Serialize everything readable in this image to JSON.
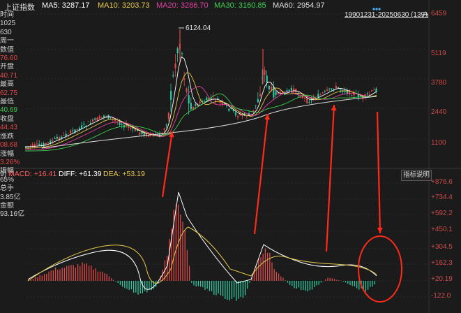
{
  "index_name": "上证指数",
  "ma": [
    {
      "label": "MA5",
      "value": "3287.17",
      "color": "#ffffff"
    },
    {
      "label": "MA10",
      "value": "3203.73",
      "color": "#e6c84a"
    },
    {
      "label": "MA20",
      "value": "3286.70",
      "color": "#e040a0"
    },
    {
      "label": "MA30",
      "value": "3160.85",
      "color": "#3ccf4e"
    },
    {
      "label": "MA60",
      "value": "2954.97",
      "color": "#dddddd"
    }
  ],
  "range_label": "19901231-20250630 (139)",
  "peak_label": "6124.04",
  "price_axis": [
    "6459",
    "5119",
    "3780",
    "2440",
    "1100"
  ],
  "info_panel": [
    {
      "text": "时间",
      "color": "#cfcfcf"
    },
    {
      "text": "1025",
      "color": "#cfcfcf"
    },
    {
      "text": "630",
      "color": "#cfcfcf"
    },
    {
      "text": "周一",
      "color": "#cfcfcf"
    },
    {
      "text": "数值",
      "color": "#cfcfcf"
    },
    {
      "text": "76.60",
      "color": "#e04848"
    },
    {
      "text": "开盘",
      "color": "#cfcfcf"
    },
    {
      "text": "40.71",
      "color": "#e04848"
    },
    {
      "text": "最高",
      "color": "#cfcfcf"
    },
    {
      "text": "62.75",
      "color": "#e04848"
    },
    {
      "text": "最低",
      "color": "#cfcfcf"
    },
    {
      "text": "40.69",
      "color": "#3ccf4e"
    },
    {
      "text": "收盘",
      "color": "#cfcfcf"
    },
    {
      "text": "44.43",
      "color": "#e04848"
    },
    {
      "text": "涨跌",
      "color": "#cfcfcf"
    },
    {
      "text": "08.68",
      "color": "#e04848"
    },
    {
      "text": "涨幅",
      "color": "#cfcfcf"
    },
    {
      "text": "3.26%",
      "color": "#e04848"
    },
    {
      "text": "振幅",
      "color": "#cfcfcf"
    },
    {
      "text": "65%",
      "color": "#cfcfcf"
    },
    {
      "text": "总手",
      "color": "#cfcfcf"
    },
    {
      "text": "3.85亿",
      "color": "#cfcfcf"
    },
    {
      "text": "金额",
      "color": "#cfcfcf"
    },
    {
      "text": "93.16亿",
      "color": "#cfcfcf"
    }
  ],
  "macd": {
    "params": "9)",
    "macd_label": "MACD: +16.41",
    "diff_label": "DIFF: +61.39",
    "dea_label": "DEA: +53.19",
    "help_button": "指标说明",
    "axis": [
      "+876.6",
      "+734.4",
      "+592.2",
      "+450.1",
      "+304.5",
      "+162.3",
      "+20.19",
      "-122.0"
    ]
  },
  "colors": {
    "background": "#1b1b1b",
    "up": "#e04848",
    "down": "#2ec7a0",
    "annotation": "#ff2a1a",
    "axis_red": "#cc4b4b"
  }
}
